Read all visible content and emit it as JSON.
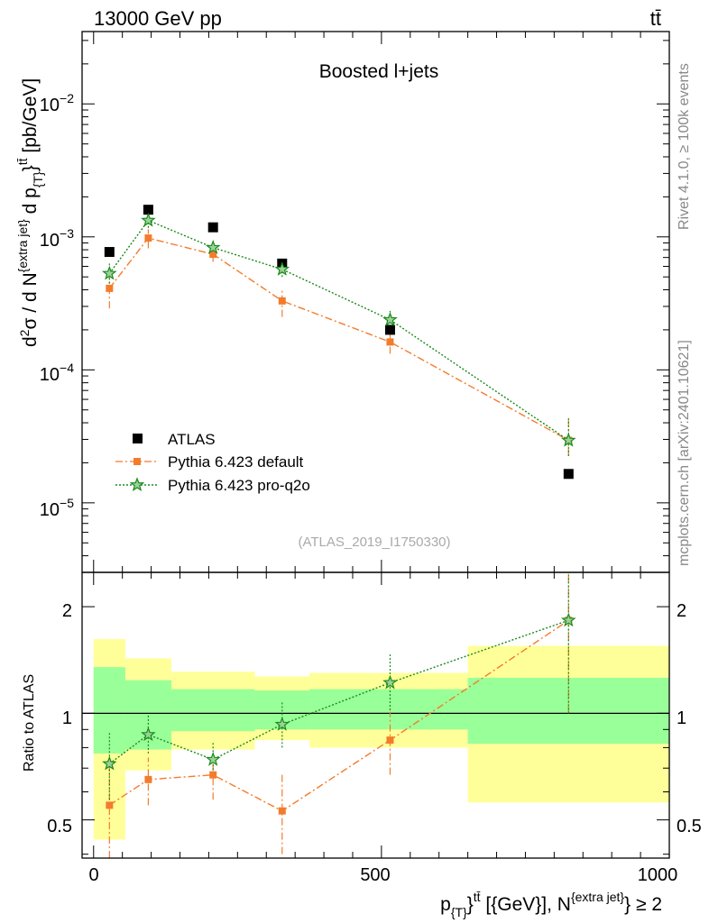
{
  "header": {
    "energy_label": "13000 GeV pp",
    "process_label": "tt̄",
    "plot_title": "Boosted l+jets",
    "analysis_id": "(ATLAS_2019_I1750330)"
  },
  "side_labels": {
    "rivet": "Rivet 4.1.0, ≥ 100k events",
    "mcplots": "mcplots.cern.ch [arXiv:2401.10621]"
  },
  "chart_data": [
    {
      "type": "scatter",
      "panel": "main",
      "yscale": "log",
      "ylim": [
        3e-06,
        0.035
      ],
      "xlim": [
        -20,
        1000
      ],
      "ylabel": "d²σ / d N^{extra jet} d p_{T}^{tt̄} [pb/GeV]",
      "ytick_labels": [
        "10^-2",
        "10^-3",
        "10^-4",
        "10^-5"
      ],
      "series": [
        {
          "name": "ATLAS",
          "color": "#000000",
          "marker": "square",
          "x": [
            27.5,
            95,
            207.5,
            327.5,
            515,
            825
          ],
          "y": [
            0.00077,
            0.0016,
            0.00118,
            0.00063,
            0.0002,
            1.65e-05
          ]
        },
        {
          "name": "Pythia 6.423 default",
          "color": "#f37c2c",
          "marker": "square",
          "linestyle": "dashdot",
          "x": [
            27.5,
            95,
            207.5,
            327.5,
            515,
            825
          ],
          "y": [
            0.00041,
            0.00098,
            0.00074,
            0.00033,
            0.000162,
            2.95e-05
          ],
          "yerr_low": [
            0.00012,
            0.00016,
            9e-05,
            8e-05,
            3e-05,
            7e-06
          ],
          "yerr_high": [
            0.00012,
            0.00016,
            9e-05,
            8e-05,
            3e-05,
            1.4e-05
          ]
        },
        {
          "name": "Pythia 6.423 pro-q2o",
          "color": "#1a8a1a",
          "marker": "star",
          "linestyle": "dotted",
          "x": [
            27.5,
            95,
            207.5,
            327.5,
            515,
            825
          ],
          "y": [
            0.00053,
            0.00133,
            0.00083,
            0.00057,
            0.000238,
            2.95e-05
          ],
          "yerr_low": [
            0.00011,
            0.00016,
            9e-05,
            7e-05,
            4e-05,
            7e-06
          ],
          "yerr_high": [
            0.00011,
            0.00016,
            9e-05,
            7e-05,
            4e-05,
            1.4e-05
          ]
        }
      ]
    },
    {
      "type": "scatter",
      "panel": "ratio",
      "yscale": "log",
      "ylim": [
        0.39,
        2.5
      ],
      "xlim": [
        -20,
        1000
      ],
      "ylabel": "Ratio to ATLAS",
      "xlabel": "p_{T}^{tt̄} [{GeV}], N^{extra jet} ≥ 2",
      "xtick_labels": [
        "0",
        "500",
        "1000"
      ],
      "ytick_labels": [
        "0.5",
        "1",
        "2"
      ],
      "bins": [
        0,
        55,
        135,
        280,
        375,
        650,
        1000
      ],
      "band_yellow": [
        [
          0.44,
          1.62
        ],
        [
          0.69,
          1.43
        ],
        [
          0.79,
          1.31
        ],
        [
          0.84,
          1.27
        ],
        [
          0.8,
          1.3
        ],
        [
          0.56,
          1.55
        ]
      ],
      "band_green": [
        [
          0.77,
          1.35
        ],
        [
          0.79,
          1.24
        ],
        [
          0.89,
          1.17
        ],
        [
          0.9,
          1.16
        ],
        [
          0.9,
          1.17
        ],
        [
          0.82,
          1.26
        ]
      ],
      "series": [
        {
          "name": "Pythia 6.423 default",
          "color": "#f37c2c",
          "linestyle": "dashdot",
          "x": [
            27.5,
            95,
            207.5,
            327.5,
            515,
            825
          ],
          "y": [
            0.55,
            0.65,
            0.67,
            0.53,
            0.84,
            1.83
          ],
          "yerr_low": [
            0.18,
            0.1,
            0.1,
            0.13,
            0.17,
            0.83
          ],
          "yerr_high": [
            0.18,
            0.1,
            0.1,
            0.15,
            0.17,
            0.8
          ]
        },
        {
          "name": "Pythia 6.423 pro-q2o",
          "color": "#1a8a1a",
          "linestyle": "dotted",
          "x": [
            27.5,
            95,
            207.5,
            327.5,
            515,
            825
          ],
          "y": [
            0.72,
            0.87,
            0.74,
            0.93,
            1.22,
            1.83
          ],
          "yerr_low": [
            0.15,
            0.1,
            0.08,
            0.13,
            0.2,
            0.83
          ],
          "yerr_high": [
            0.17,
            0.12,
            0.09,
            0.15,
            0.25,
            0.8
          ]
        }
      ]
    }
  ]
}
